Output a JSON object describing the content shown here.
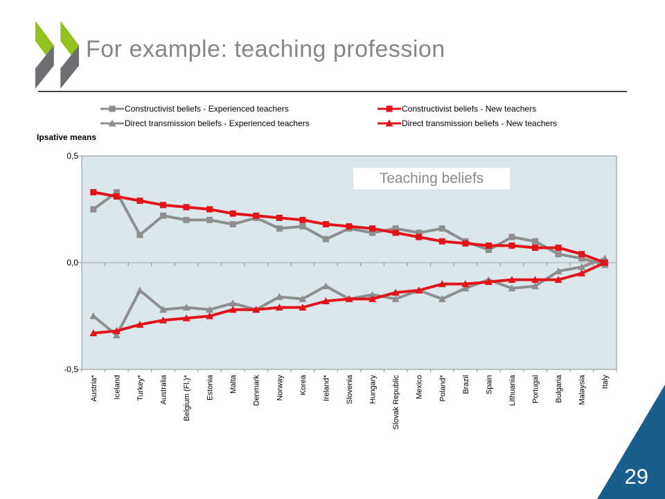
{
  "slide": {
    "title": "For example: teaching profession",
    "page_number": "29"
  },
  "colors": {
    "logo_green": "#95c11f",
    "logo_gray": "#6e6f72",
    "title_text": "#848689",
    "footer_triangle": "#1a5e8e",
    "page_number_text": "#ffffff"
  },
  "chart_data": {
    "type": "line",
    "title": "Teaching beliefs",
    "xlabel": "",
    "ylabel": "Ipsative means",
    "ylim": [
      -0.5,
      0.5
    ],
    "grid": "zero-line-only",
    "legend_position": "top",
    "plot_bg": "#dae8ee",
    "axis_color": "#8c8c8c",
    "zero_line_color": "#a8a8a8",
    "yticks": [
      {
        "label": "0,5",
        "value": 0.5
      },
      {
        "label": "0,0",
        "value": 0.0
      },
      {
        "label": "-0,5",
        "value": -0.5
      }
    ],
    "categories": [
      "Austria*",
      "Iceland",
      "Turkey*",
      "Australia",
      "Belgium (Fl.)*",
      "Estonia",
      "Malta",
      "Denmark",
      "Norway",
      "Korea",
      "Ireland*",
      "Slovenia",
      "Hungary",
      "Slovak Republic",
      "Mexico",
      "Poland*",
      "Brazil",
      "Spain",
      "Lithuania",
      "Portugal",
      "Bulgaria",
      "Malaysia",
      "Italy"
    ],
    "draw_order": [
      0,
      2,
      1,
      3
    ],
    "series": [
      {
        "name": "Constructivist beliefs - Experienced teachers",
        "color": "#8e8e8e",
        "marker": "square",
        "values": [
          0.25,
          0.33,
          0.13,
          0.22,
          0.2,
          0.2,
          0.18,
          0.21,
          0.16,
          0.17,
          0.11,
          0.16,
          0.14,
          0.16,
          0.14,
          0.16,
          0.1,
          0.06,
          0.12,
          0.1,
          0.04,
          0.02,
          -0.01
        ]
      },
      {
        "name": "Constructivist beliefs - New teachers",
        "color": "#e3131b",
        "marker": "square",
        "values": [
          0.33,
          0.31,
          0.29,
          0.27,
          0.26,
          0.25,
          0.23,
          0.22,
          0.21,
          0.2,
          0.18,
          0.17,
          0.16,
          0.14,
          0.12,
          0.1,
          0.09,
          0.08,
          0.08,
          0.07,
          0.07,
          0.04,
          0.0
        ]
      },
      {
        "name": "Direct transmission beliefs - Experienced teachers",
        "color": "#8e8e8e",
        "marker": "triangle",
        "values": [
          -0.25,
          -0.34,
          -0.13,
          -0.22,
          -0.21,
          -0.22,
          -0.19,
          -0.22,
          -0.16,
          -0.17,
          -0.11,
          -0.17,
          -0.15,
          -0.17,
          -0.13,
          -0.17,
          -0.12,
          -0.08,
          -0.12,
          -0.11,
          -0.04,
          -0.02,
          0.02
        ]
      },
      {
        "name": "Direct transmission beliefs - New teachers",
        "color": "#e3131b",
        "marker": "triangle",
        "values": [
          -0.33,
          -0.32,
          -0.29,
          -0.27,
          -0.26,
          -0.25,
          -0.22,
          -0.22,
          -0.21,
          -0.21,
          -0.18,
          -0.17,
          -0.17,
          -0.14,
          -0.13,
          -0.1,
          -0.1,
          -0.09,
          -0.08,
          -0.08,
          -0.08,
          -0.05,
          0.0
        ]
      }
    ],
    "annotations": [
      {
        "text": "Teaching beliefs"
      }
    ]
  }
}
